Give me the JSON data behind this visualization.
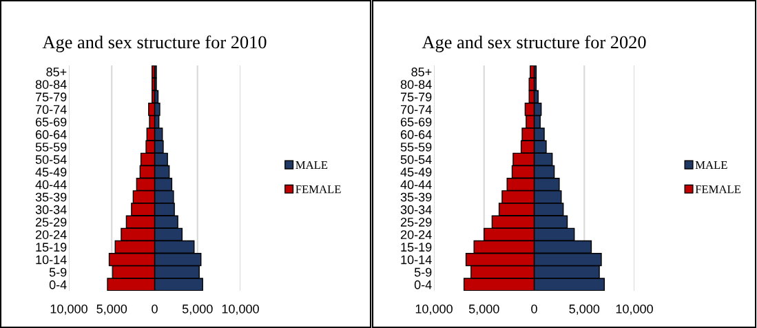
{
  "chart_data": [
    {
      "type": "bar",
      "orientation": "horizontal",
      "title": "Age and sex structure for 2010",
      "categories": [
        "85+",
        "80-84",
        "75-79",
        "70-74",
        "65-69",
        "60-64",
        "55-59",
        "50-54",
        "45-49",
        "40-44",
        "35-39",
        "30-34",
        "25-29",
        "20-24",
        "15-19",
        "10-14",
        "5-9",
        "0-4"
      ],
      "series": [
        {
          "name": "MALE",
          "color": "#203864",
          "values": [
            200,
            200,
            400,
            600,
            500,
            900,
            1000,
            1500,
            1700,
            2000,
            2200,
            2300,
            2700,
            3200,
            4600,
            5400,
            5200,
            5600
          ]
        },
        {
          "name": "FEMALE",
          "color": "#c00000",
          "values": [
            -300,
            -300,
            -300,
            -700,
            -600,
            -900,
            -1000,
            -1600,
            -1700,
            -2100,
            -2500,
            -2700,
            -3300,
            -3900,
            -4600,
            -5300,
            -4900,
            -5500
          ]
        }
      ],
      "xlim": [
        -10000,
        10000
      ],
      "xticks": [
        {
          "value": -10000,
          "label": "10,000"
        },
        {
          "value": -5000,
          "label": "5,000"
        },
        0,
        {
          "value": 5000,
          "label": "5,000"
        },
        {
          "value": 10000,
          "label": "10,000"
        }
      ],
      "stacked": true,
      "grid": "x",
      "legend": "right"
    },
    {
      "type": "bar",
      "orientation": "horizontal",
      "title": "Age and sex structure for 2020",
      "categories": [
        "85+",
        "80-84",
        "75-79",
        "70-74",
        "65-69",
        "60-64",
        "55-59",
        "50-54",
        "45-49",
        "40-44",
        "35-39",
        "30-34",
        "25-29",
        "20-24",
        "15-19",
        "10-14",
        "5-9",
        "0-4"
      ],
      "series": [
        {
          "name": "MALE",
          "color": "#203864",
          "values": [
            200,
            200,
            400,
            700,
            600,
            1000,
            1200,
            1800,
            2000,
            2500,
            2700,
            2900,
            3300,
            4000,
            5700,
            6700,
            6500,
            7000
          ]
        },
        {
          "name": "FEMALE",
          "color": "#c00000",
          "values": [
            -400,
            -500,
            -500,
            -900,
            -800,
            -1200,
            -1300,
            -2100,
            -2200,
            -2700,
            -3200,
            -3500,
            -4200,
            -5000,
            -6000,
            -6800,
            -6300,
            -7000
          ]
        }
      ],
      "xlim": [
        -10000,
        10000
      ],
      "xticks": [
        {
          "value": -10000,
          "label": "10,000"
        },
        {
          "value": -5000,
          "label": "5,000"
        },
        0,
        {
          "value": 5000,
          "label": "5,000"
        },
        {
          "value": 10000,
          "label": "10,000"
        }
      ],
      "stacked": true,
      "grid": "x",
      "legend": "right"
    }
  ]
}
